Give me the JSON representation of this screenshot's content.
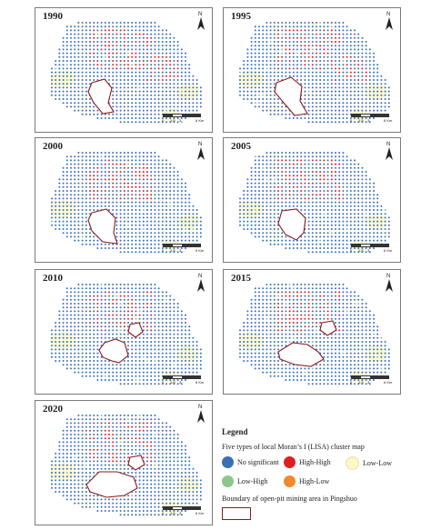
{
  "panels": [
    {
      "year": "1990"
    },
    {
      "year": "1995"
    },
    {
      "year": "2000"
    },
    {
      "year": "2005"
    },
    {
      "year": "2010"
    },
    {
      "year": "2015"
    },
    {
      "year": "2020"
    }
  ],
  "north_label": "N",
  "scale_labels": [
    "0",
    "1.5",
    "3",
    "6 Km"
  ],
  "legend": {
    "title": "Legend",
    "subtitle": "Five types of  local Moran’s I  (LISA) cluster map",
    "items": [
      {
        "label": "No significant",
        "color": "#3b6fb6"
      },
      {
        "label": "High-High",
        "color": "#e02020"
      },
      {
        "label": "Low-Low",
        "color": "#fbf7c6"
      },
      {
        "label": "Low-High",
        "color": "#8dc58d"
      },
      {
        "label": "High-Low",
        "color": "#f08a2c"
      }
    ],
    "boundary_label": "Boundary of open-pit mining area in Pingshuo",
    "boundary_color": "#8a1c1c"
  }
}
